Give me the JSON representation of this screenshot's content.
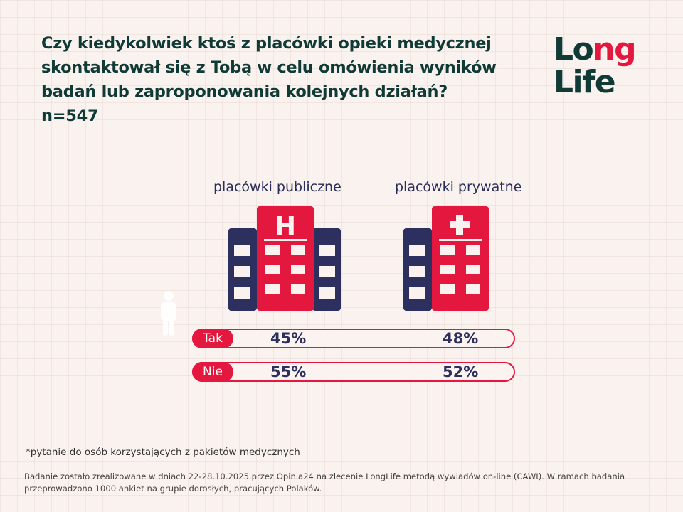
{
  "title_lines": [
    "Czy kiedykolwiek ktoś z placówki opieki medycznej",
    "skontaktował się z Tobą w celu omówienia wyników",
    "badań lub zaproponowania kolejnych działań?",
    "n=547"
  ],
  "logo": {
    "line1_a": "Lo",
    "line1_b": "ng",
    "line2": "Life"
  },
  "colors": {
    "accent": "#e4173f",
    "navy": "#2d2f5e",
    "brand_dark": "#0f3a36",
    "background": "#faf2ee"
  },
  "icons": {
    "public": "hospital-h-icon",
    "private": "hospital-cross-icon",
    "person": "person-icon"
  },
  "chart_data": {
    "type": "table",
    "columns": [
      "placówki publiczne",
      "placówki prywatne"
    ],
    "rows": [
      {
        "label": "Tak",
        "values": [
          45,
          48
        ]
      },
      {
        "label": "Nie",
        "values": [
          55,
          52
        ]
      }
    ],
    "value_labels": [
      [
        "45%",
        "48%"
      ],
      [
        "55%",
        "52%"
      ]
    ],
    "unit": "%"
  },
  "footnote": "*pytanie do osób korzystających z pakietów medycznych",
  "source": "Badanie zostało zrealizowane w dniach 22-28.10.2025 przez Opinia24 na zlecenie LongLife metodą wywiadów on-line (CAWI). W ramach badania przeprowadzono 1000 ankiet na grupie dorosłych, pracujących Polaków."
}
